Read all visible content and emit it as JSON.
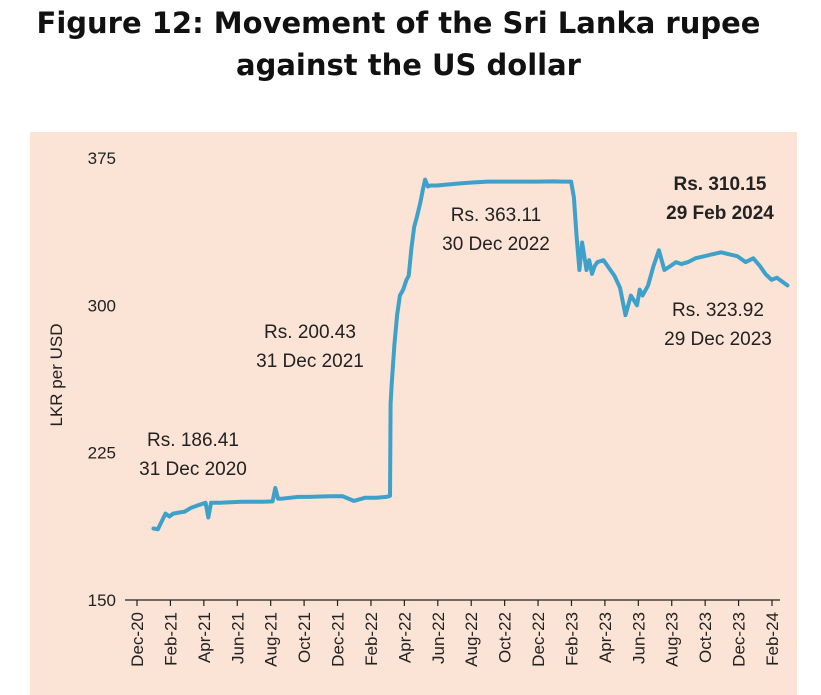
{
  "title": {
    "line1": "Figure 12: Movement of the Sri Lanka rupee",
    "line2": "against the US dollar"
  },
  "colors": {
    "background": "#fbe3d6",
    "line": "#3ea1c9",
    "text": "#222222"
  },
  "chart_data": {
    "type": "line",
    "title": "Figure 12: Movement of the Sri Lanka rupee against the US dollar",
    "xlabel": "",
    "ylabel": "LKR per USD",
    "ylim": [
      150,
      375
    ],
    "yticks": [
      150,
      225,
      300,
      375
    ],
    "xticks": [
      "Dec-20",
      "Feb-21",
      "Apr-21",
      "Jun-21",
      "Aug-21",
      "Oct-21",
      "Dec-21",
      "Feb-22",
      "Apr-22",
      "Jun-22",
      "Aug-22",
      "Oct-22",
      "Dec-22",
      "Feb-23",
      "Apr-23",
      "Jun-23",
      "Aug-23",
      "Oct-23",
      "Dec-23",
      "Feb-24"
    ],
    "grid": false,
    "legend": "none",
    "series": [
      {
        "x": [
          "2020-12-31",
          "2021-01-08",
          "2021-01-15",
          "2021-01-22",
          "2021-01-29",
          "2021-02-05",
          "2021-02-15",
          "2021-02-26",
          "2021-03-10",
          "2021-03-20",
          "2021-03-31",
          "2021-04-05",
          "2021-04-10",
          "2021-04-15",
          "2021-05-01",
          "2021-05-20",
          "2021-06-10",
          "2021-07-01",
          "2021-07-20",
          "2021-08-05",
          "2021-08-10",
          "2021-08-15",
          "2021-08-20",
          "2021-09-05",
          "2021-09-20",
          "2021-10-10",
          "2021-10-31",
          "2021-11-20",
          "2021-12-10",
          "2021-12-31",
          "2022-01-20",
          "2022-02-10",
          "2022-02-28",
          "2022-03-07",
          "2022-03-08",
          "2022-03-10",
          "2022-03-15",
          "2022-03-20",
          "2022-03-25",
          "2022-03-31",
          "2022-04-06",
          "2022-04-10",
          "2022-04-15",
          "2022-04-20",
          "2022-04-25",
          "2022-05-01",
          "2022-05-06",
          "2022-05-10",
          "2022-05-15",
          "2022-05-20",
          "2022-06-01",
          "2022-06-20",
          "2022-07-10",
          "2022-08-01",
          "2022-09-01",
          "2022-10-01",
          "2022-11-01",
          "2022-12-01",
          "2022-12-30",
          "2023-01-15",
          "2023-01-31",
          "2023-02-05",
          "2023-02-10",
          "2023-02-15",
          "2023-02-20",
          "2023-02-28",
          "2023-03-05",
          "2023-03-10",
          "2023-03-15",
          "2023-03-20",
          "2023-03-31",
          "2023-04-10",
          "2023-04-20",
          "2023-04-30",
          "2023-05-10",
          "2023-05-20",
          "2023-05-31",
          "2023-06-05",
          "2023-06-10",
          "2023-06-20",
          "2023-06-30",
          "2023-07-10",
          "2023-07-20",
          "2023-07-31",
          "2023-08-10",
          "2023-08-20",
          "2023-09-01",
          "2023-09-15",
          "2023-10-01",
          "2023-10-15",
          "2023-10-31",
          "2023-11-15",
          "2023-11-30",
          "2023-12-15",
          "2023-12-29",
          "2024-01-10",
          "2024-01-20",
          "2024-01-31",
          "2024-02-10",
          "2024-02-20",
          "2024-02-29"
        ],
        "values": [
          186.41,
          186.0,
          190.0,
          194.0,
          192.5,
          194.0,
          194.5,
          195.0,
          197.0,
          198.0,
          199.0,
          199.5,
          192.0,
          199.5,
          199.5,
          199.8,
          200.0,
          200.0,
          200.0,
          200.2,
          207.0,
          201.5,
          201.5,
          202.0,
          202.5,
          202.5,
          202.7,
          202.8,
          202.9,
          200.43,
          202.0,
          202.0,
          202.5,
          203.0,
          250.0,
          260.0,
          280.0,
          295.0,
          305.0,
          308.0,
          313.0,
          315.0,
          329.0,
          340.0,
          345.0,
          352.0,
          359.0,
          364.0,
          360.5,
          361.0,
          361.0,
          361.5,
          362.0,
          362.5,
          363.0,
          363.0,
          363.0,
          363.0,
          363.11,
          363.0,
          363.0,
          355.0,
          335.0,
          318.0,
          332.0,
          318.0,
          323.0,
          316.0,
          320.0,
          322.0,
          323.0,
          319.0,
          315.0,
          309.0,
          295.0,
          305.0,
          300.0,
          308.0,
          305.0,
          310.0,
          320.0,
          328.0,
          318.0,
          320.0,
          322.0,
          321.0,
          322.0,
          324.0,
          325.0,
          326.0,
          327.0,
          326.0,
          325.0,
          322.0,
          323.92,
          320.0,
          316.0,
          313.0,
          314.0,
          312.0,
          310.15
        ]
      }
    ],
    "annotations": [
      {
        "line1": "Rs. 186.41",
        "line2": "31 Dec 2020",
        "bold": false
      },
      {
        "line1": "Rs. 200.43",
        "line2": "31 Dec 2021",
        "bold": false
      },
      {
        "line1": "Rs. 363.11",
        "line2": "30 Dec 2022",
        "bold": false
      },
      {
        "line1": "Rs. 310.15",
        "line2": "29 Feb 2024",
        "bold": true
      },
      {
        "line1": "Rs. 323.92",
        "line2": "29 Dec 2023",
        "bold": false
      }
    ]
  }
}
